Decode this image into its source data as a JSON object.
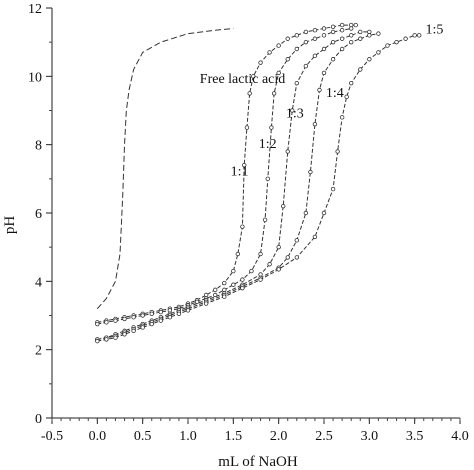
{
  "chart_data": {
    "type": "line",
    "title": "",
    "xlabel": "mL of NaOH",
    "ylabel": "pH",
    "xlim": [
      -0.5,
      4.0
    ],
    "ylim": [
      0,
      12
    ],
    "x_ticks": [
      "-0.5",
      "0.0",
      "0.5",
      "1.0",
      "1.5",
      "2.0",
      "2.5",
      "3.0",
      "3.5",
      "4.0"
    ],
    "y_ticks": [
      "0",
      "2",
      "4",
      "6",
      "8",
      "10",
      "12"
    ],
    "grid": false,
    "legend": "none",
    "series": [
      {
        "name": "Free lactic acid",
        "markers": false,
        "x": [
          0.0,
          0.1,
          0.2,
          0.25,
          0.28,
          0.3,
          0.32,
          0.35,
          0.4,
          0.5,
          0.7,
          1.0,
          1.3,
          1.5
        ],
        "y": [
          3.2,
          3.5,
          4.0,
          4.8,
          6.5,
          8.0,
          9.0,
          9.6,
          10.2,
          10.7,
          11.0,
          11.25,
          11.35,
          11.4
        ]
      },
      {
        "name": "1:1",
        "markers": true,
        "x": [
          0.0,
          0.1,
          0.2,
          0.3,
          0.4,
          0.5,
          0.6,
          0.7,
          0.8,
          0.9,
          1.0,
          1.1,
          1.2,
          1.3,
          1.4,
          1.5,
          1.55,
          1.6,
          1.62,
          1.65,
          1.68,
          1.72,
          1.8,
          1.9,
          2.0,
          2.1,
          2.2,
          2.3,
          2.4,
          2.5,
          2.6,
          2.7,
          2.8,
          2.85
        ],
        "y": [
          2.8,
          2.85,
          2.9,
          2.95,
          3.0,
          3.05,
          3.1,
          3.15,
          3.2,
          3.25,
          3.35,
          3.45,
          3.6,
          3.75,
          3.95,
          4.3,
          4.8,
          5.6,
          7.4,
          8.5,
          9.5,
          10.0,
          10.4,
          10.7,
          10.9,
          11.1,
          11.2,
          11.3,
          11.35,
          11.4,
          11.45,
          11.5,
          11.5,
          11.5
        ]
      },
      {
        "name": "1:2",
        "markers": true,
        "x": [
          0.0,
          0.1,
          0.2,
          0.3,
          0.4,
          0.5,
          0.6,
          0.7,
          0.8,
          0.9,
          1.0,
          1.1,
          1.2,
          1.3,
          1.4,
          1.5,
          1.6,
          1.7,
          1.8,
          1.85,
          1.88,
          1.92,
          1.95,
          2.0,
          2.1,
          2.2,
          2.3,
          2.4,
          2.5,
          2.6,
          2.7,
          2.8
        ],
        "y": [
          2.75,
          2.8,
          2.85,
          2.9,
          2.95,
          3.0,
          3.05,
          3.1,
          3.15,
          3.2,
          3.3,
          3.4,
          3.5,
          3.6,
          3.75,
          3.9,
          4.05,
          4.3,
          4.8,
          5.8,
          7.0,
          8.5,
          9.5,
          10.1,
          10.5,
          10.8,
          11.0,
          11.1,
          11.2,
          11.3,
          11.35,
          11.4
        ]
      },
      {
        "name": "1:3",
        "markers": true,
        "x": [
          0.0,
          0.1,
          0.2,
          0.3,
          0.4,
          0.5,
          0.6,
          0.7,
          0.8,
          0.9,
          1.0,
          1.2,
          1.4,
          1.6,
          1.8,
          1.9,
          2.0,
          2.05,
          2.1,
          2.15,
          2.2,
          2.3,
          2.4,
          2.5,
          2.6,
          2.7,
          2.8,
          2.9,
          3.0
        ],
        "y": [
          2.3,
          2.35,
          2.45,
          2.55,
          2.65,
          2.75,
          2.85,
          2.95,
          3.05,
          3.15,
          3.25,
          3.45,
          3.65,
          3.9,
          4.2,
          4.5,
          5.0,
          6.2,
          7.8,
          9.0,
          9.8,
          10.3,
          10.6,
          10.8,
          11.0,
          11.1,
          11.2,
          11.3,
          11.3
        ]
      },
      {
        "name": "1:4",
        "markers": true,
        "x": [
          0.0,
          0.1,
          0.2,
          0.3,
          0.4,
          0.5,
          0.6,
          0.7,
          0.8,
          0.9,
          1.0,
          1.2,
          1.4,
          1.6,
          1.8,
          2.0,
          2.1,
          2.2,
          2.3,
          2.35,
          2.4,
          2.45,
          2.5,
          2.6,
          2.7,
          2.8,
          2.9,
          3.0,
          3.1
        ],
        "y": [
          2.3,
          2.35,
          2.4,
          2.5,
          2.6,
          2.7,
          2.8,
          2.9,
          3.0,
          3.1,
          3.2,
          3.4,
          3.6,
          3.85,
          4.1,
          4.4,
          4.7,
          5.2,
          6.0,
          7.2,
          8.6,
          9.6,
          10.1,
          10.5,
          10.8,
          11.0,
          11.1,
          11.2,
          11.25
        ]
      },
      {
        "name": "1:5",
        "markers": true,
        "x": [
          0.0,
          0.1,
          0.2,
          0.3,
          0.4,
          0.5,
          0.6,
          0.7,
          0.8,
          0.9,
          1.0,
          1.2,
          1.4,
          1.6,
          1.8,
          2.0,
          2.2,
          2.4,
          2.5,
          2.6,
          2.65,
          2.7,
          2.75,
          2.8,
          2.9,
          3.0,
          3.1,
          3.2,
          3.3,
          3.4,
          3.5,
          3.55
        ],
        "y": [
          2.25,
          2.3,
          2.35,
          2.45,
          2.55,
          2.65,
          2.75,
          2.85,
          2.95,
          3.05,
          3.15,
          3.35,
          3.55,
          3.8,
          4.05,
          4.35,
          4.7,
          5.3,
          6.0,
          6.7,
          7.8,
          8.8,
          9.4,
          9.8,
          10.2,
          10.5,
          10.7,
          10.9,
          11.0,
          11.1,
          11.2,
          11.2
        ]
      }
    ],
    "annotations": [
      {
        "text": "Free lactic acid",
        "x": 1.13,
        "y": 9.8
      },
      {
        "text": "1:1",
        "x": 1.47,
        "y": 7.1
      },
      {
        "text": "1:2",
        "x": 1.78,
        "y": 7.9
      },
      {
        "text": "1:3",
        "x": 2.08,
        "y": 8.8
      },
      {
        "text": "1:4",
        "x": 2.52,
        "y": 9.4
      },
      {
        "text": "1:5",
        "x": 3.62,
        "y": 11.25
      }
    ]
  }
}
